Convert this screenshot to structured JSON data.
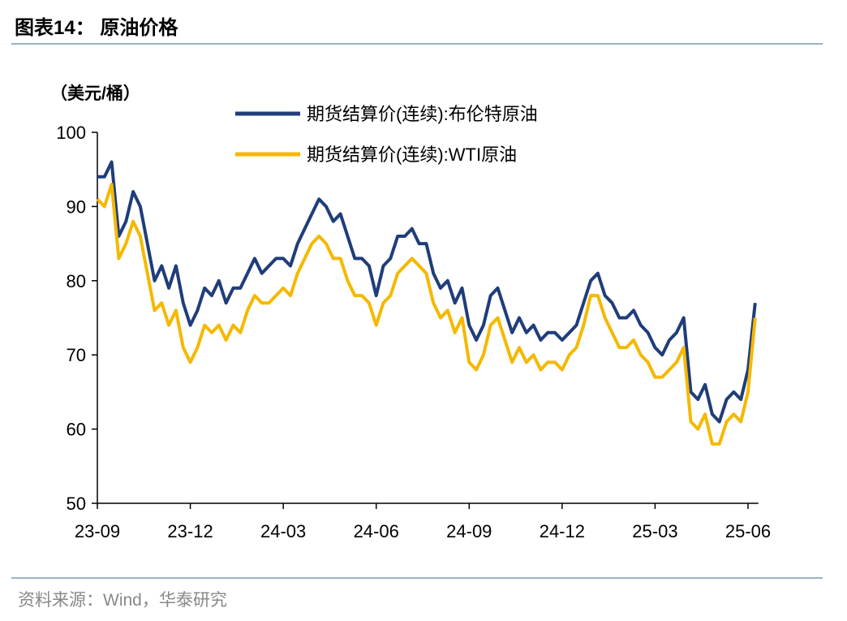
{
  "header": {
    "title": "图表14：  原油价格"
  },
  "chart_data": {
    "type": "line",
    "y_label": "（美元/桶）",
    "categories": [
      "23-09",
      null,
      null,
      null,
      null,
      null,
      null,
      null,
      null,
      null,
      null,
      null,
      null,
      "23-12",
      null,
      null,
      null,
      null,
      null,
      null,
      null,
      null,
      null,
      null,
      null,
      null,
      "24-03",
      null,
      null,
      null,
      null,
      null,
      null,
      null,
      null,
      null,
      null,
      null,
      null,
      "24-06",
      null,
      null,
      null,
      null,
      null,
      null,
      null,
      null,
      null,
      null,
      null,
      null,
      "24-09",
      null,
      null,
      null,
      null,
      null,
      null,
      null,
      null,
      null,
      null,
      null,
      null,
      "24-12",
      null,
      null,
      null,
      null,
      null,
      null,
      null,
      null,
      null,
      null,
      null,
      null,
      "25-03",
      null,
      null,
      null,
      null,
      null,
      null,
      null,
      null,
      null,
      null,
      null,
      null,
      "25-06",
      null
    ],
    "series": [
      {
        "name": "期货结算价(连续):布伦特原油",
        "color": "#1f3d7a",
        "values": [
          94,
          94,
          96,
          86,
          88,
          92,
          90,
          85,
          80,
          82,
          79,
          82,
          77,
          74,
          76,
          79,
          78,
          80,
          77,
          79,
          79,
          81,
          83,
          81,
          82,
          83,
          83,
          82,
          85,
          87,
          89,
          91,
          90,
          88,
          89,
          86,
          83,
          83,
          82,
          78,
          82,
          83,
          86,
          86,
          87,
          85,
          85,
          81,
          79,
          80,
          77,
          79,
          74,
          72,
          74,
          78,
          79,
          76,
          73,
          75,
          73,
          74,
          72,
          73,
          73,
          72,
          73,
          74,
          77,
          80,
          81,
          78,
          77,
          75,
          75,
          76,
          74,
          73,
          71,
          70,
          72,
          73,
          75,
          65,
          64,
          66,
          62,
          61,
          64,
          65,
          64,
          68,
          77
        ]
      },
      {
        "name": "期货结算价(连续):WTI原油",
        "color": "#f5b800",
        "values": [
          91,
          90,
          93,
          83,
          85,
          88,
          86,
          81,
          76,
          77,
          74,
          76,
          71,
          69,
          71,
          74,
          73,
          74,
          72,
          74,
          73,
          76,
          78,
          77,
          77,
          78,
          79,
          78,
          81,
          83,
          85,
          86,
          85,
          83,
          83,
          80,
          78,
          78,
          77,
          74,
          77,
          78,
          81,
          82,
          83,
          82,
          81,
          77,
          75,
          76,
          73,
          75,
          69,
          68,
          70,
          74,
          75,
          72,
          69,
          71,
          69,
          70,
          68,
          69,
          69,
          68,
          70,
          71,
          74,
          78,
          78,
          75,
          73,
          71,
          71,
          72,
          70,
          69,
          67,
          67,
          68,
          69,
          71,
          61,
          60,
          62,
          58,
          58,
          61,
          62,
          61,
          65,
          75
        ]
      }
    ],
    "ylim": [
      50,
      100
    ],
    "yticks": [
      50,
      60,
      70,
      80,
      90,
      100
    ],
    "grid": false
  },
  "footer": {
    "source": "资料来源：Wind，华泰研究"
  }
}
